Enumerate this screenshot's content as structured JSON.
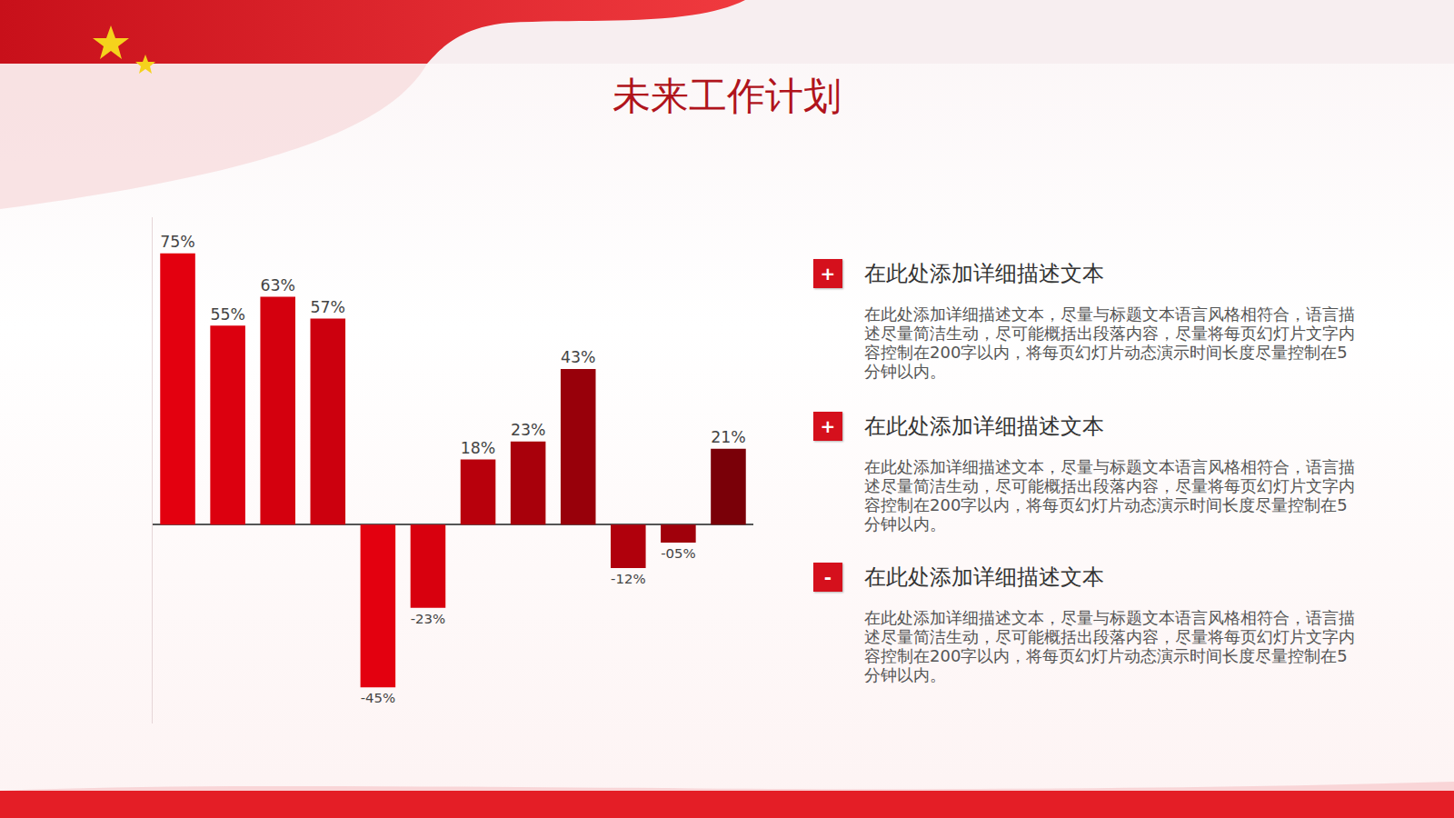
{
  "title": "未来工作计划",
  "chart_data": {
    "type": "bar",
    "categories": [
      null,
      null,
      null,
      null,
      null,
      null,
      null,
      null,
      null,
      null,
      null,
      null
    ],
    "values": [
      75,
      55,
      63,
      57,
      -45,
      -23,
      18,
      23,
      43,
      -12,
      -5,
      21
    ],
    "value_labels": [
      "75%",
      "55%",
      "63%",
      "57%",
      "-45%",
      "-23%",
      "18%",
      "23%",
      "43%",
      "-12%",
      "-05%",
      "21%"
    ],
    "colors": [
      "#e3000f",
      "#dc000f",
      "#d4000e",
      "#cc000e",
      "#e3000f",
      "#d8000e",
      "#b8000c",
      "#a8000b",
      "#98000a",
      "#b0000c",
      "#a0000b",
      "#7a0008"
    ],
    "ylim": [
      -55,
      85
    ],
    "yticks": [
      0
    ],
    "grid": false,
    "data_labels": true,
    "tick_labels": false
  },
  "items": [
    {
      "icon": "+",
      "heading": "在此处添加详细描述文本",
      "body": "在此处添加详细描述文本，尽量与标题文本语言风格相符合，语言描述尽量简洁生动，尽可能概括出段落内容，尽量将每页幻灯片文字内容控制在200字以内，将每页幻灯片动态演示时间长度尽量控制在5分钟以内。"
    },
    {
      "icon": "+",
      "heading": "在此处添加详细描述文本",
      "body": "在此处添加详细描述文本，尽量与标题文本语言风格相符合，语言描述尽量简洁生动，尽可能概括出段落内容，尽量将每页幻灯片文字内容控制在200字以内，将每页幻灯片动态演示时间长度尽量控制在5分钟以内。"
    },
    {
      "icon": "-",
      "heading": "在此处添加详细描述文本",
      "body": "在此处添加详细描述文本，尽量与标题文本语言风格相符合，语言描述尽量简洁生动，尽可能概括出段落内容，尽量将每页幻灯片文字内容控制在200字以内，将每页幻灯片动态演示时间长度尽量控制在5分钟以内。"
    }
  ]
}
